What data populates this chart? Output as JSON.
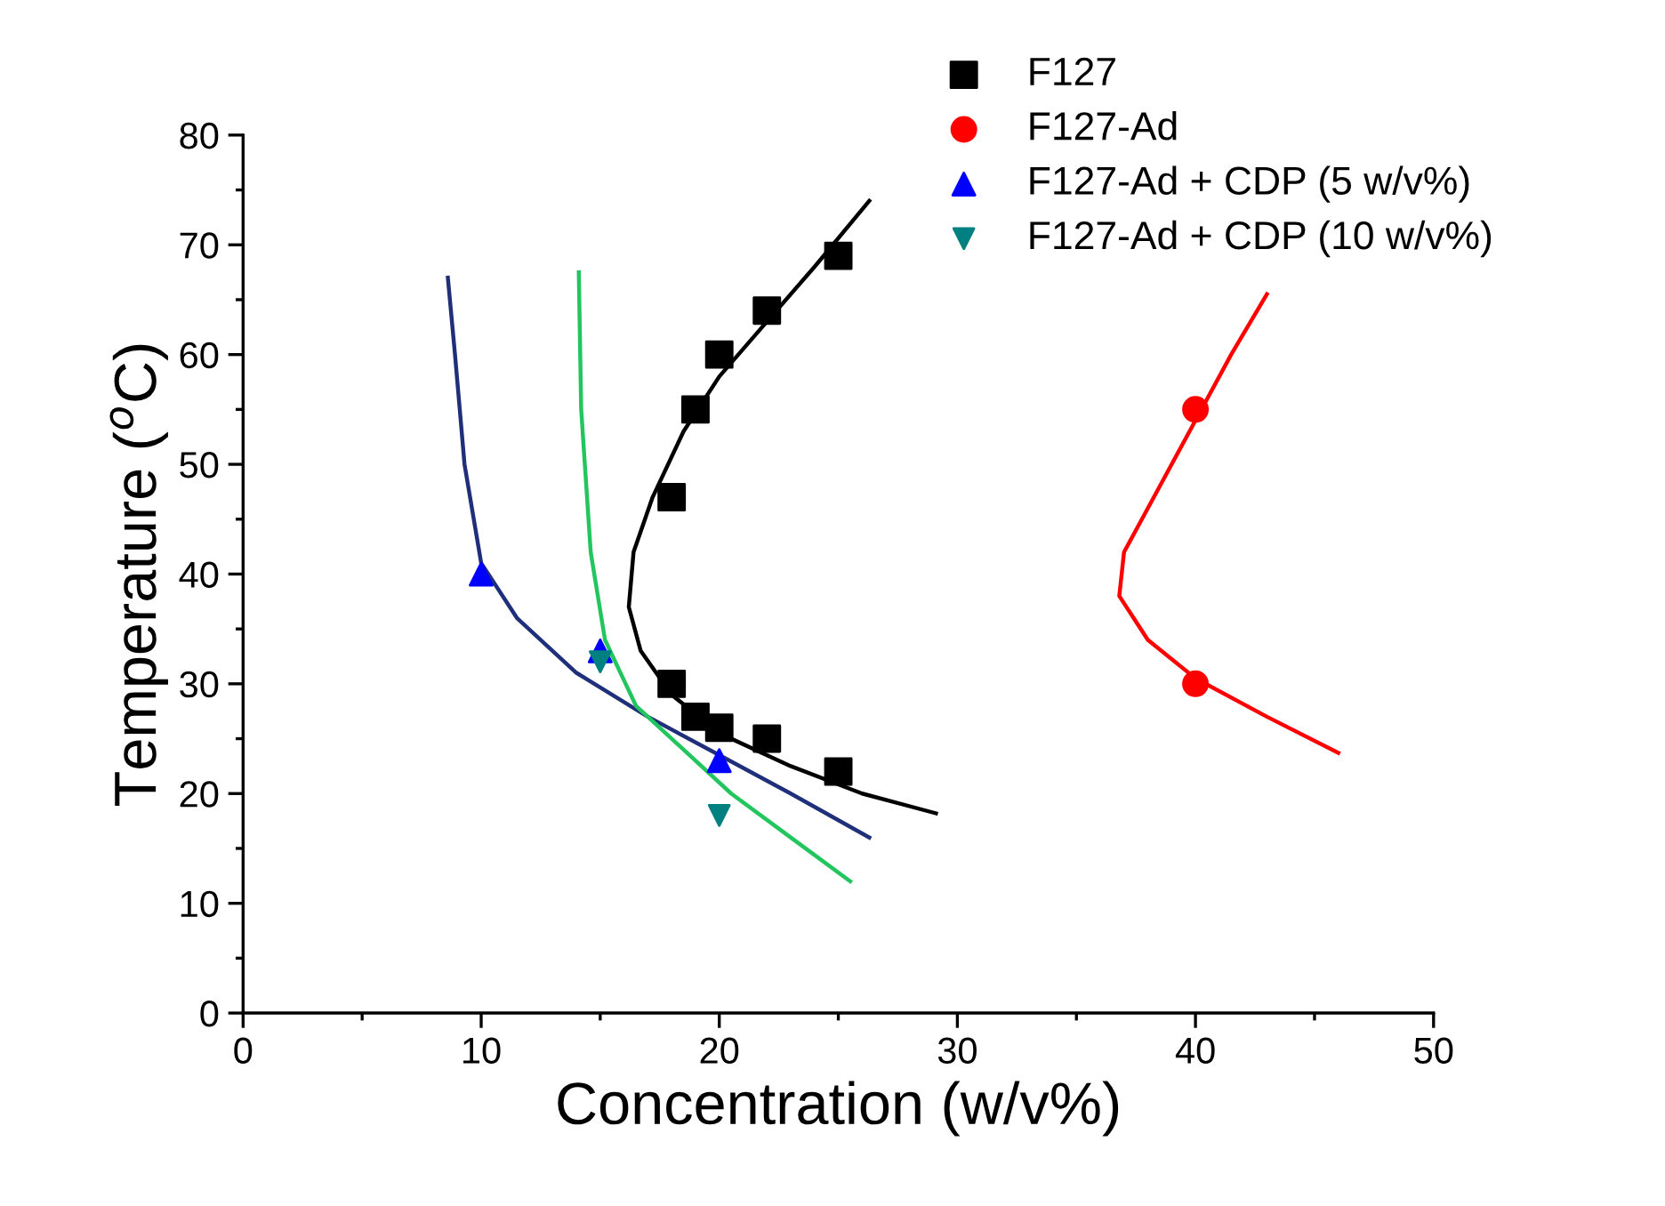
{
  "chart_data": {
    "type": "scatter",
    "xlabel": "Concentration (w/v%)",
    "ylabel": "Temperature ($^{o}$C)",
    "xlim": [
      0,
      50
    ],
    "xticks": [
      0,
      10,
      20,
      30,
      40,
      50
    ],
    "ylim": [
      0,
      80
    ],
    "yticks": [
      0,
      10,
      20,
      30,
      40,
      50,
      60,
      70,
      80
    ],
    "grid": false,
    "legend": "top right",
    "series": [
      {
        "name": "F127",
        "marker": "square",
        "color": "#000000",
        "x": [
          18,
          19,
          20,
          22,
          25,
          18,
          19,
          20,
          22,
          25
        ],
        "values": [
          47,
          55,
          60,
          64,
          69,
          30,
          27,
          26,
          25,
          22
        ]
      },
      {
        "name": "F127-Ad",
        "marker": "circle",
        "color": "#ff0000",
        "x": [
          40,
          40
        ],
        "values": [
          55,
          30
        ]
      },
      {
        "name": "F127-Ad + CDP (5 w/v%)",
        "marker": "triangle",
        "color": "#0000ff",
        "x": [
          10,
          15,
          20
        ],
        "values": [
          40,
          33,
          23
        ]
      },
      {
        "name": "F127-Ad + CDP (10 w/v%)",
        "marker": "triangle_down",
        "color": "#008080",
        "x": [
          15,
          20
        ],
        "values": [
          32,
          18
        ]
      },
      {
        "type": "line",
        "color": "#000000",
        "x": [
          29.1,
          26,
          23,
          20,
          18,
          16.7,
          16.2,
          16.4,
          17.2,
          18.5,
          20,
          22,
          24,
          26.3
        ],
        "values": [
          18.2,
          20,
          22.5,
          25.5,
          29,
          33,
          37,
          42,
          47,
          53,
          58,
          63,
          68,
          74
        ]
      },
      {
        "type": "line",
        "color": "#ff0000",
        "x": [
          46,
          43,
          40,
          38,
          36.8,
          37,
          38.5,
          40,
          41.5,
          43
        ],
        "values": [
          23.7,
          27,
          30.5,
          34,
          38,
          42,
          48,
          54,
          60,
          65.5
        ]
      },
      {
        "type": "line",
        "color": "#1f2f7a",
        "x": [
          8.6,
          8.9,
          9.3,
          10,
          11.5,
          14,
          17,
          20,
          23,
          26.3
        ],
        "values": [
          67,
          60,
          50,
          41,
          36,
          31,
          27,
          23.5,
          20,
          16
        ]
      },
      {
        "type": "line",
        "color": "#22c55e",
        "x": [
          14.1,
          14.2,
          14.6,
          15.2,
          16.5,
          18.5,
          20.5,
          23,
          25.5
        ],
        "values": [
          67.5,
          55,
          42,
          34,
          28,
          24,
          20,
          16,
          12
        ]
      }
    ]
  }
}
